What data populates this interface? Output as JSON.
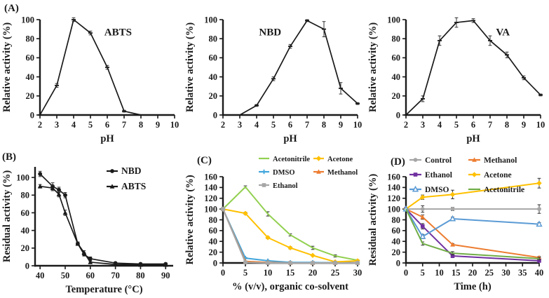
{
  "figure": {
    "panels": [
      {
        "label": "(A)"
      },
      {
        "label": "(B)"
      },
      {
        "label": "(C)"
      },
      {
        "label": "(D)"
      }
    ]
  },
  "colors": {
    "axis_black": "#1a1a1a",
    "acetonitrile_c": "#92d050",
    "acetone": "#ffc000",
    "dmso_c": "#41a5dc",
    "dmso_d": "#5b9bd5",
    "methanol": "#ed7d31",
    "ethanol_gray": "#a6a6a6",
    "ethanol_purple": "#7030a0",
    "acetonitrile_d": "#70ad47",
    "control_gray": "#a6a6a6"
  },
  "chart_data": [
    {
      "id": "ph-abts",
      "type": "line",
      "panel": "A",
      "annotation": "ABTS",
      "xlabel": "pH",
      "ylabel": "Relative activity (%)",
      "xlim": [
        2,
        10
      ],
      "ylim": [
        0,
        100
      ],
      "xticks": [
        2,
        3,
        4,
        5,
        6,
        7,
        8,
        9,
        10
      ],
      "yticks": [
        0,
        20,
        40,
        60,
        80,
        100
      ],
      "grid": false,
      "series": [
        {
          "name": "ABTS",
          "color": "#1a1a1a",
          "marker": "dash",
          "x": [
            2,
            3,
            4,
            5,
            6,
            7,
            8
          ],
          "y": [
            0,
            31,
            100,
            86,
            50,
            4,
            0
          ],
          "err": [
            0,
            2,
            2,
            2,
            2,
            1,
            0
          ]
        }
      ]
    },
    {
      "id": "ph-nbd",
      "type": "line",
      "panel": "A",
      "annotation": "NBD",
      "xlabel": "pH",
      "ylabel": "Relative activity (%)",
      "xlim": [
        2,
        10
      ],
      "ylim": [
        0,
        100
      ],
      "xticks": [
        2,
        3,
        4,
        5,
        6,
        7,
        8,
        9,
        10
      ],
      "yticks": [
        0,
        20,
        40,
        60,
        80,
        100
      ],
      "grid": false,
      "series": [
        {
          "name": "NBD",
          "color": "#1a1a1a",
          "marker": "dash",
          "x": [
            3,
            4,
            5,
            6,
            7,
            8,
            9,
            10
          ],
          "y": [
            0,
            10,
            38,
            72,
            99,
            90,
            28,
            12
          ],
          "err": [
            0,
            1,
            2,
            2,
            1,
            8,
            6,
            1
          ]
        }
      ]
    },
    {
      "id": "ph-va",
      "type": "line",
      "panel": "A",
      "annotation": "VA",
      "xlabel": "pH",
      "ylabel": "Relative activity (%)",
      "xlim": [
        2,
        10
      ],
      "ylim": [
        0,
        100
      ],
      "xticks": [
        2,
        3,
        4,
        5,
        6,
        7,
        8,
        9,
        10
      ],
      "yticks": [
        0,
        20,
        40,
        60,
        80,
        100
      ],
      "grid": false,
      "series": [
        {
          "name": "VA",
          "color": "#1a1a1a",
          "marker": "dash",
          "x": [
            2,
            3,
            4,
            5,
            6,
            7,
            8,
            9,
            10
          ],
          "y": [
            0,
            17,
            78,
            97,
            99,
            78,
            63,
            39,
            21
          ],
          "err": [
            0,
            3,
            5,
            5,
            2,
            5,
            3,
            2,
            1
          ]
        }
      ]
    },
    {
      "id": "thermal-stability",
      "type": "line",
      "panel": "B",
      "annotation": "",
      "xlabel": "Temperature (°C)",
      "ylabel": "Residual activity (%)",
      "xlim": [
        38,
        93
      ],
      "ylim": [
        0,
        112
      ],
      "xticks": [
        40,
        50,
        60,
        70,
        80,
        90
      ],
      "yticks": [
        0,
        20,
        40,
        60,
        80,
        100
      ],
      "grid": false,
      "legend": {
        "position": "inset-top-right",
        "columns": 1
      },
      "series": [
        {
          "name": "NBD",
          "color": "#1a1a1a",
          "marker": "circle",
          "x": [
            40,
            45,
            47.5,
            50,
            55,
            57.5,
            60,
            70,
            80,
            90
          ],
          "y": [
            104,
            90,
            86,
            80,
            25,
            13,
            8,
            3,
            2,
            2
          ],
          "err": [
            3,
            4,
            3,
            3,
            2,
            2,
            2,
            1,
            1,
            1
          ]
        },
        {
          "name": "ABTS",
          "color": "#1a1a1a",
          "marker": "triangle",
          "x": [
            40,
            45,
            47.5,
            50,
            55,
            57.5,
            60,
            70,
            80,
            90
          ],
          "y": [
            90,
            88,
            81,
            60,
            25,
            15,
            4,
            1.5,
            1,
            1
          ],
          "err": [
            2,
            3,
            3,
            3,
            2,
            2,
            1,
            1,
            1,
            1
          ]
        }
      ]
    },
    {
      "id": "cosolvent-concentration",
      "type": "line",
      "panel": "C",
      "annotation": "",
      "xlabel": "% (v/v), organic co-solvent",
      "ylabel": "Relative activity (%)",
      "xlim": [
        0,
        30
      ],
      "ylim": [
        0,
        160
      ],
      "xticks": [
        0,
        5,
        10,
        15,
        20,
        25,
        30
      ],
      "yticks": [
        0,
        20,
        40,
        60,
        80,
        100,
        120,
        140,
        160
      ],
      "grid": false,
      "legend": {
        "position": "top",
        "columns": 2
      },
      "series": [
        {
          "name": "Acetonitrile",
          "color": "#92d050",
          "marker": "none",
          "x": [
            0,
            5,
            10,
            15,
            20,
            25,
            30
          ],
          "y": [
            100,
            141,
            91,
            52,
            28,
            13,
            5
          ],
          "err": [
            2,
            2,
            4,
            2,
            3,
            2,
            1
          ]
        },
        {
          "name": "Acetone",
          "color": "#ffc000",
          "marker": "diamond",
          "x": [
            0,
            5,
            10,
            15,
            20,
            25,
            30
          ],
          "y": [
            100,
            92,
            47,
            28,
            14,
            2,
            4
          ],
          "err": [
            2,
            2,
            2,
            2,
            1,
            1,
            1
          ]
        },
        {
          "name": "DMSO",
          "color": "#41a5dc",
          "marker": "plus",
          "x": [
            0,
            5,
            10,
            15,
            20,
            25,
            30
          ],
          "y": [
            100,
            9,
            4,
            1,
            1,
            0,
            0
          ],
          "err": [
            2,
            1,
            1,
            0,
            0,
            0,
            0
          ]
        },
        {
          "name": "Methanol",
          "color": "#ed7d31",
          "marker": "triangle",
          "x": [
            0,
            5,
            10,
            15,
            20,
            25,
            30
          ],
          "y": [
            100,
            3,
            1,
            0,
            0,
            0,
            0
          ],
          "err": [
            2,
            1,
            0,
            0,
            0,
            0,
            0
          ]
        },
        {
          "name": "Ethanol",
          "color": "#a6a6a6",
          "marker": "square",
          "x": [
            0,
            5,
            10,
            15,
            20,
            25,
            30
          ],
          "y": [
            100,
            1,
            0,
            0,
            0,
            0,
            0
          ],
          "err": [
            2,
            0,
            0,
            0,
            0,
            0,
            0
          ]
        }
      ]
    },
    {
      "id": "solvent-time-course",
      "type": "line",
      "panel": "D",
      "annotation": "",
      "xlabel": "Time (h)",
      "ylabel": "Residual activity (%)",
      "xlim": [
        0,
        40
      ],
      "ylim": [
        0,
        160
      ],
      "xticks": [
        0,
        5,
        10,
        15,
        20,
        25,
        30,
        35,
        40
      ],
      "yticks": [
        0,
        20,
        40,
        60,
        80,
        100,
        120,
        140,
        160
      ],
      "grid": false,
      "legend": {
        "position": "top",
        "columns": 2
      },
      "series": [
        {
          "name": "Control",
          "color": "#a6a6a6",
          "marker": "circle",
          "x": [
            0,
            5,
            14,
            40
          ],
          "y": [
            100,
            100,
            100,
            100
          ],
          "err": [
            0,
            6,
            3,
            8
          ]
        },
        {
          "name": "Methanol",
          "color": "#ed7d31",
          "marker": "triangle",
          "x": [
            0,
            5,
            14,
            40
          ],
          "y": [
            100,
            85,
            34,
            10
          ],
          "err": [
            0,
            4,
            2,
            2
          ]
        },
        {
          "name": "Ethanol",
          "color": "#7030a0",
          "marker": "square",
          "x": [
            0,
            5,
            14,
            40
          ],
          "y": [
            100,
            68,
            13,
            4
          ],
          "err": [
            0,
            5,
            3,
            1
          ]
        },
        {
          "name": "Acetone",
          "color": "#ffc000",
          "marker": "diamond",
          "x": [
            0,
            5,
            14,
            40
          ],
          "y": [
            100,
            122,
            127,
            148
          ],
          "err": [
            0,
            4,
            8,
            9
          ]
        },
        {
          "name": "DMSO",
          "color": "#5b9bd5",
          "marker": "triangle-open",
          "x": [
            0,
            5,
            14,
            40
          ],
          "y": [
            100,
            49,
            82,
            72
          ],
          "err": [
            0,
            4,
            3,
            3
          ]
        },
        {
          "name": "Acetonitrile",
          "color": "#70ad47",
          "marker": "none",
          "x": [
            0,
            5,
            14,
            40
          ],
          "y": [
            100,
            36,
            18,
            8
          ],
          "err": [
            0,
            3,
            3,
            2
          ]
        }
      ]
    }
  ]
}
